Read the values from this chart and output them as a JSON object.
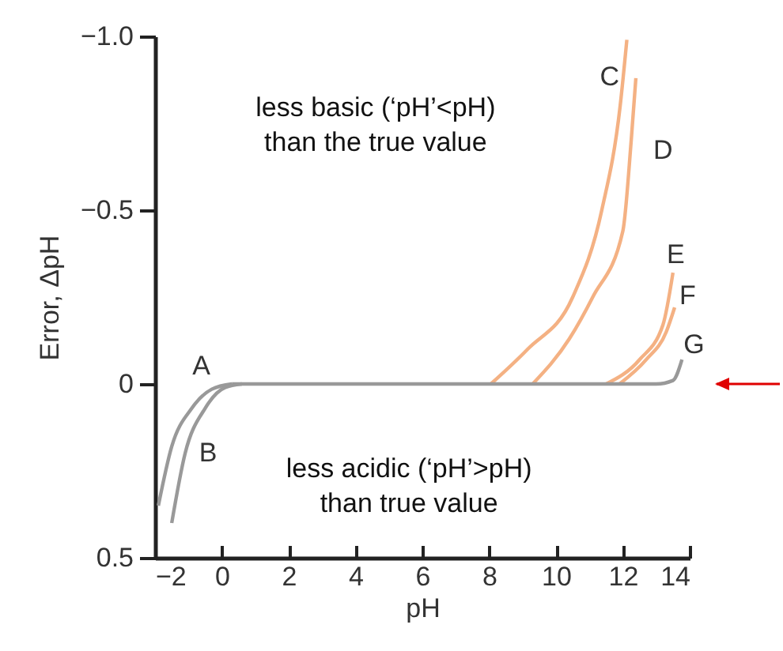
{
  "chart_data": {
    "type": "line",
    "xlabel": "pH",
    "ylabel": "Error, ΔpH",
    "xlim": [
      -2,
      14
    ],
    "xticks": [
      {
        "value": -2,
        "label": "−2"
      },
      0,
      2,
      4,
      6,
      8,
      10,
      12,
      14
    ],
    "ylim": [
      0.5,
      -1.0
    ],
    "yticks": [
      {
        "value": -1.0,
        "label": "−1.0"
      },
      {
        "value": -0.5,
        "label": "−0.5"
      },
      0,
      0.5
    ],
    "grid": false,
    "legend": false,
    "marker": "none",
    "line_style": "solid",
    "series": [
      {
        "name": "A",
        "color": "#999999",
        "x": [
          -1.9,
          -1.5,
          -0.9,
          -0.3,
          0.3
        ],
        "values": [
          0.35,
          0.18,
          0.07,
          0.015,
          0
        ]
      },
      {
        "name": "B",
        "color": "#999999",
        "x": [
          -1.5,
          -1.1,
          -0.5,
          0.1,
          0.6
        ],
        "values": [
          0.4,
          0.2,
          0.07,
          0.01,
          0
        ]
      },
      {
        "name": "C",
        "color": "#f4b183",
        "x": [
          8.05,
          9.15,
          10.5,
          11.37,
          11.92,
          12.12
        ],
        "values": [
          0,
          -0.1,
          -0.25,
          -0.5,
          -0.8,
          -0.99
        ]
      },
      {
        "name": "D",
        "color": "#f4b183",
        "x": [
          9.3,
          10.4,
          11.1,
          12.0,
          12.25,
          12.39
        ],
        "values": [
          0,
          -0.13,
          -0.25,
          -0.44,
          -0.7,
          -0.88
        ]
      },
      {
        "name": "E",
        "color": "#f4b183",
        "x": [
          11.5,
          12.5,
          13.2,
          13.5
        ],
        "values": [
          0,
          -0.07,
          -0.17,
          -0.32
        ]
      },
      {
        "name": "F",
        "color": "#f4b183",
        "x": [
          11.9,
          12.7,
          13.3,
          13.55
        ],
        "values": [
          0,
          -0.07,
          -0.15,
          -0.22
        ]
      },
      {
        "name": "G",
        "color": "#999999",
        "x": [
          0.3,
          6,
          13,
          13.5,
          13.77
        ],
        "values": [
          0,
          0,
          0,
          -0.01,
          -0.07
        ]
      }
    ],
    "annotations": [
      "less basic (‘pH’<pH)\nthan the true value",
      "less acidic (‘pH’>pH)\nthan true value"
    ]
  }
}
